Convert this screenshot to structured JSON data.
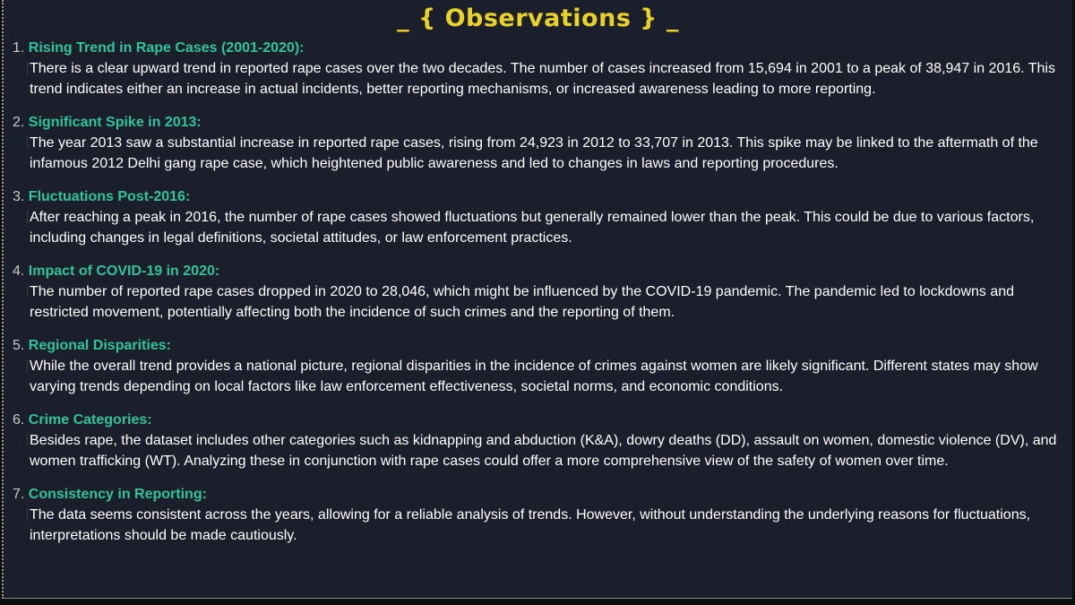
{
  "title": "_ { Observations } _",
  "observations": [
    {
      "number": "1.",
      "heading": "Rising Trend in Rape Cases (2001-2020):",
      "text": "There is a clear upward trend in reported rape cases over the two decades. The number of cases increased from 15,694 in 2001 to a peak of 38,947 in 2016. This trend indicates either an increase in actual incidents, better reporting mechanisms, or increased awareness leading to more reporting."
    },
    {
      "number": "2.",
      "heading": "Significant Spike in 2013:",
      "text": "The year 2013 saw a substantial increase in reported rape cases, rising from 24,923 in 2012 to 33,707 in 2013. This spike may be linked to the aftermath of the infamous 2012 Delhi gang rape case, which heightened public awareness and led to changes in laws and reporting procedures."
    },
    {
      "number": "3.",
      "heading": "Fluctuations Post-2016:",
      "text": "After reaching a peak in 2016, the number of rape cases showed fluctuations but generally remained lower than the peak. This could be due to various factors, including changes in legal definitions, societal attitudes, or law enforcement practices."
    },
    {
      "number": "4.",
      "heading": "Impact of COVID-19 in 2020:",
      "text": "The number of reported rape cases dropped in 2020 to 28,046, which might be influenced by the COVID-19 pandemic. The pandemic led to lockdowns and restricted movement, potentially affecting both the incidence of such crimes and the reporting of them."
    },
    {
      "number": "5.",
      "heading": "Regional Disparities:",
      "text": "While the overall trend provides a national picture, regional disparities in the incidence of crimes against women are likely significant. Different states may show varying trends depending on local factors like law enforcement effectiveness, societal norms, and economic conditions."
    },
    {
      "number": "6.",
      "heading": "Crime Categories:",
      "text": "Besides rape, the dataset includes other categories such as kidnapping and abduction (K&A), dowry deaths (DD), assault on women, domestic violence (DV), and women trafficking (WT). Analyzing these in conjunction with rape cases could offer a more comprehensive view of the safety of women over time."
    },
    {
      "number": "7.",
      "heading": "Consistency in Reporting:",
      "text": "The data seems consistent across the years, allowing for a reliable analysis of trends. However, without understanding the underlying reasons for fluctuations, interpretations should be made cautiously."
    }
  ]
}
